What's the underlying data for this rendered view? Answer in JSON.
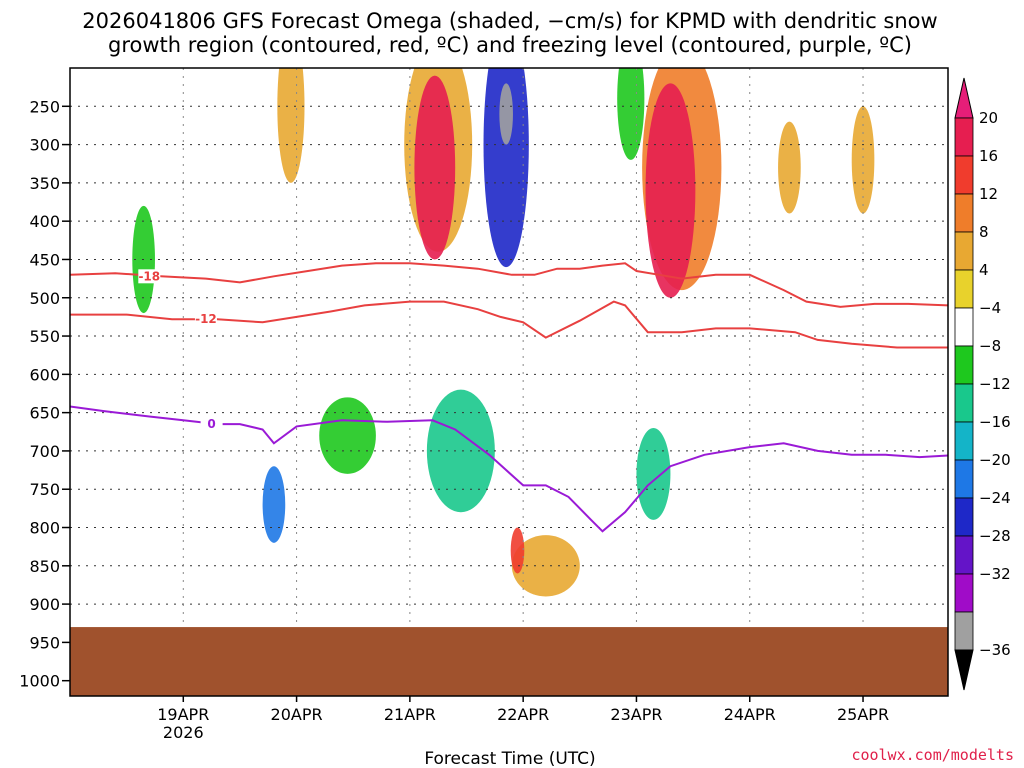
{
  "chart_data": {
    "type": "heatmap",
    "title_line1": "2026041806 GFS Forecast Omega (shaded, −cm/s) for KPMD with dendritic snow",
    "title_line2": "growth region (contoured, red, ºC) and freezing level (contoured, purple, ºC)",
    "xlabel": "Forecast Time (UTC)",
    "credit": "coolwx.com/modelts",
    "x_ticks": [
      {
        "t": 1,
        "label": "19APR",
        "sub": "2026"
      },
      {
        "t": 2,
        "label": "20APR"
      },
      {
        "t": 3,
        "label": "21APR"
      },
      {
        "t": 4,
        "label": "22APR"
      },
      {
        "t": 5,
        "label": "23APR"
      },
      {
        "t": 6,
        "label": "24APR"
      },
      {
        "t": 7,
        "label": "25APR"
      }
    ],
    "xlim": [
      0,
      7.75
    ],
    "y_ticks": [
      250,
      300,
      350,
      400,
      450,
      500,
      550,
      600,
      650,
      700,
      750,
      800,
      850,
      900,
      950,
      1000
    ],
    "ylim": [
      200,
      1020
    ],
    "surface_pressure": 930,
    "colorbar": {
      "labels": [
        "20",
        "16",
        "12",
        "8",
        "4",
        "−4",
        "−8",
        "−12",
        "−16",
        "−20",
        "−24",
        "−28",
        "−32",
        "−36"
      ],
      "colors": [
        "#e61e50",
        "#f03c2d",
        "#ef7d2a",
        "#e8a832",
        "#e8d22c",
        "#ffffff",
        "#1ec81e",
        "#19c88c",
        "#14b4c8",
        "#1e78e6",
        "#1e28c8",
        "#6414c8",
        "#a00cc8",
        "#a0a0a0"
      ],
      "top_color": "#e61e78",
      "bottom_color": "#000000"
    },
    "contours": [
      {
        "label": "-18",
        "color": "#e84040",
        "label_at": 0.7,
        "points": [
          [
            0,
            470
          ],
          [
            0.4,
            468
          ],
          [
            0.8,
            472
          ],
          [
            1.2,
            475
          ],
          [
            1.5,
            480
          ],
          [
            1.8,
            472
          ],
          [
            2.1,
            465
          ],
          [
            2.4,
            458
          ],
          [
            2.7,
            455
          ],
          [
            3.0,
            455
          ],
          [
            3.3,
            458
          ],
          [
            3.6,
            462
          ],
          [
            3.9,
            470
          ],
          [
            4.1,
            470
          ],
          [
            4.3,
            462
          ],
          [
            4.5,
            462
          ],
          [
            4.7,
            458
          ],
          [
            4.9,
            455
          ],
          [
            5.0,
            465
          ],
          [
            5.2,
            470
          ],
          [
            5.4,
            475
          ],
          [
            5.7,
            470
          ],
          [
            6.0,
            470
          ],
          [
            6.3,
            490
          ],
          [
            6.5,
            505
          ],
          [
            6.8,
            512
          ],
          [
            7.1,
            508
          ],
          [
            7.4,
            508
          ],
          [
            7.75,
            510
          ]
        ]
      },
      {
        "label": "-12",
        "color": "#e84040",
        "label_at": 1.2,
        "points": [
          [
            0,
            522
          ],
          [
            0.5,
            522
          ],
          [
            0.9,
            528
          ],
          [
            1.3,
            528
          ],
          [
            1.7,
            532
          ],
          [
            2.0,
            525
          ],
          [
            2.3,
            518
          ],
          [
            2.6,
            510
          ],
          [
            3.0,
            505
          ],
          [
            3.3,
            505
          ],
          [
            3.6,
            515
          ],
          [
            3.8,
            525
          ],
          [
            4.0,
            532
          ],
          [
            4.2,
            552
          ],
          [
            4.5,
            530
          ],
          [
            4.8,
            505
          ],
          [
            4.9,
            510
          ],
          [
            5.1,
            545
          ],
          [
            5.4,
            545
          ],
          [
            5.7,
            540
          ],
          [
            6.0,
            540
          ],
          [
            6.4,
            545
          ],
          [
            6.6,
            555
          ],
          [
            6.9,
            560
          ],
          [
            7.3,
            565
          ],
          [
            7.75,
            565
          ]
        ]
      },
      {
        "label": "0",
        "color": "#9a1ad6",
        "label_at": 1.25,
        "points": [
          [
            0,
            642
          ],
          [
            0.3,
            648
          ],
          [
            0.7,
            655
          ],
          [
            1.0,
            660
          ],
          [
            1.3,
            665
          ],
          [
            1.5,
            665
          ],
          [
            1.7,
            672
          ],
          [
            1.8,
            690
          ],
          [
            2.0,
            668
          ],
          [
            2.4,
            660
          ],
          [
            2.8,
            662
          ],
          [
            3.2,
            660
          ],
          [
            3.4,
            672
          ],
          [
            3.7,
            705
          ],
          [
            4.0,
            745
          ],
          [
            4.2,
            745
          ],
          [
            4.4,
            760
          ],
          [
            4.6,
            790
          ],
          [
            4.7,
            805
          ],
          [
            4.9,
            780
          ],
          [
            5.1,
            745
          ],
          [
            5.3,
            720
          ],
          [
            5.6,
            705
          ],
          [
            6.0,
            695
          ],
          [
            6.3,
            690
          ],
          [
            6.6,
            700
          ],
          [
            6.9,
            705
          ],
          [
            7.2,
            705
          ],
          [
            7.5,
            708
          ],
          [
            7.75,
            706
          ]
        ]
      }
    ],
    "blobs": [
      {
        "t": 3.25,
        "p": 300,
        "rt": 0.3,
        "rp": 140,
        "v": 8
      },
      {
        "t": 3.22,
        "p": 330,
        "rt": 0.18,
        "rp": 120,
        "v": 20
      },
      {
        "t": 3.85,
        "p": 300,
        "rt": 0.2,
        "rp": 160,
        "v": -24
      },
      {
        "t": 3.85,
        "p": 260,
        "rt": 0.06,
        "rp": 40,
        "v": -36
      },
      {
        "t": 5.4,
        "p": 330,
        "rt": 0.35,
        "rp": 160,
        "v": 12
      },
      {
        "t": 5.3,
        "p": 360,
        "rt": 0.22,
        "rp": 140,
        "v": 20
      },
      {
        "t": 4.95,
        "p": 240,
        "rt": 0.12,
        "rp": 80,
        "v": -8
      },
      {
        "t": 3.45,
        "p": 700,
        "rt": 0.3,
        "rp": 80,
        "v": -12
      },
      {
        "t": 1.8,
        "p": 770,
        "rt": 0.1,
        "rp": 50,
        "v": -20
      },
      {
        "t": 2.45,
        "p": 680,
        "rt": 0.25,
        "rp": 50,
        "v": -8
      },
      {
        "t": 0.65,
        "p": 450,
        "rt": 0.1,
        "rp": 70,
        "v": -8
      },
      {
        "t": 1.95,
        "p": 250,
        "rt": 0.12,
        "rp": 100,
        "v": 8
      },
      {
        "t": 4.2,
        "p": 850,
        "rt": 0.3,
        "rp": 40,
        "v": 8
      },
      {
        "t": 3.95,
        "p": 830,
        "rt": 0.06,
        "rp": 30,
        "v": 16
      },
      {
        "t": 6.35,
        "p": 330,
        "rt": 0.1,
        "rp": 60,
        "v": 8
      },
      {
        "t": 7.0,
        "p": 320,
        "rt": 0.1,
        "rp": 70,
        "v": 8
      },
      {
        "t": 5.15,
        "p": 730,
        "rt": 0.15,
        "rp": 60,
        "v": -12
      }
    ]
  }
}
